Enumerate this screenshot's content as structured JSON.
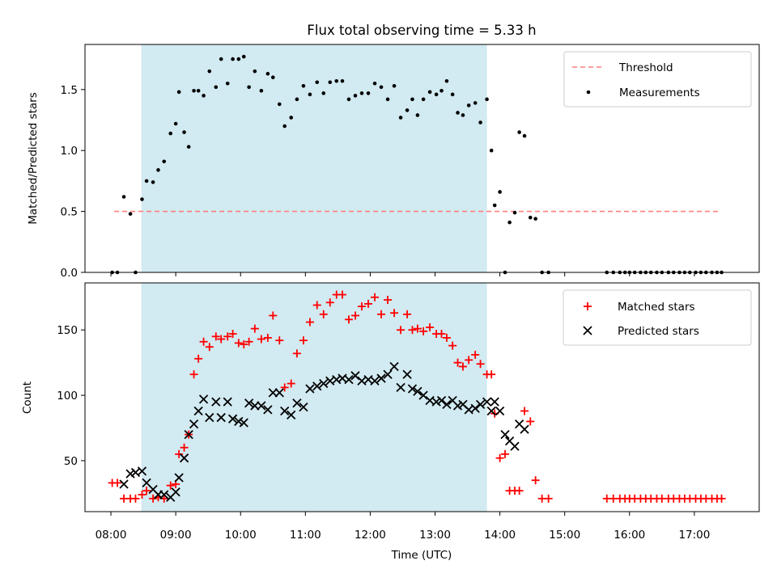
{
  "chart_data": {
    "title": "Flux total observing time = 5.33 h",
    "xlabel": "Time (UTC)",
    "x_unit": "hours UTC",
    "xlim": [
      7.6,
      18.0
    ],
    "x_ticks": [
      8,
      9,
      10,
      11,
      12,
      13,
      14,
      15,
      16,
      17
    ],
    "x_tick_labels": [
      "08:00",
      "09:00",
      "10:00",
      "11:00",
      "12:00",
      "13:00",
      "14:00",
      "15:00",
      "16:00",
      "17:00"
    ],
    "shaded_span": {
      "x0": 8.47,
      "x1": 13.8,
      "color": "#add8e6"
    },
    "panels": [
      {
        "type": "scatter",
        "ylabel": "Matched/Predicted stars",
        "ylim": [
          0,
          1.87
        ],
        "y_ticks": [
          0.0,
          0.5,
          1.0,
          1.5
        ],
        "y_tick_labels": [
          "0.0",
          "0.5",
          "1.0",
          "1.5"
        ],
        "legend_position": "upper right",
        "threshold": {
          "name": "Threshold",
          "value": 0.5,
          "x0": 8.05,
          "x1": 17.4,
          "color": "#ff7f7f"
        },
        "series": [
          {
            "name": "Measurements",
            "marker": "dot",
            "color": "#000000",
            "x": [
              8.02,
              8.1,
              8.2,
              8.3,
              8.38,
              8.48,
              8.55,
              8.65,
              8.73,
              8.82,
              8.92,
              9.0,
              9.05,
              9.13,
              9.2,
              9.28,
              9.35,
              9.43,
              9.52,
              9.62,
              9.7,
              9.8,
              9.88,
              9.97,
              10.05,
              10.13,
              10.22,
              10.32,
              10.42,
              10.5,
              10.6,
              10.68,
              10.78,
              10.87,
              10.97,
              11.07,
              11.18,
              11.28,
              11.38,
              11.48,
              11.57,
              11.67,
              11.77,
              11.87,
              11.97,
              12.07,
              12.17,
              12.27,
              12.37,
              12.47,
              12.57,
              12.65,
              12.73,
              12.82,
              12.92,
              13.02,
              13.1,
              13.18,
              13.27,
              13.35,
              13.43,
              13.52,
              13.62,
              13.7,
              13.8,
              13.87,
              13.92,
              14.0,
              14.08,
              14.15,
              14.23,
              14.3,
              14.38,
              14.47,
              14.55,
              14.65,
              14.75,
              15.65,
              15.75,
              15.85,
              15.93,
              16.0,
              16.08,
              16.17,
              16.25,
              16.33,
              16.42,
              16.5,
              16.6,
              16.68,
              16.77,
              16.85,
              16.93,
              17.02,
              17.1,
              17.18,
              17.27,
              17.35,
              17.42
            ],
            "y": [
              0.0,
              0.0,
              0.62,
              0.48,
              0.0,
              0.6,
              0.75,
              0.74,
              0.84,
              0.91,
              1.14,
              1.22,
              1.48,
              1.15,
              1.03,
              1.49,
              1.49,
              1.45,
              1.65,
              1.52,
              1.75,
              1.55,
              1.75,
              1.75,
              1.77,
              1.52,
              1.65,
              1.49,
              1.63,
              1.6,
              1.38,
              1.2,
              1.27,
              1.42,
              1.53,
              1.46,
              1.56,
              1.47,
              1.56,
              1.57,
              1.57,
              1.42,
              1.45,
              1.47,
              1.47,
              1.55,
              1.52,
              1.42,
              1.53,
              1.27,
              1.33,
              1.42,
              1.29,
              1.42,
              1.48,
              1.46,
              1.49,
              1.57,
              1.46,
              1.31,
              1.29,
              1.37,
              1.39,
              1.23,
              1.42,
              1.0,
              0.55,
              0.66,
              0.0,
              0.41,
              0.49,
              1.15,
              1.12,
              0.45,
              0.44,
              0.0,
              0.0,
              0.0,
              0.0,
              0.0,
              0.0,
              0.0,
              0.0,
              0.0,
              0.0,
              0.0,
              0.0,
              0.0,
              0.0,
              0.0,
              0.0,
              0.0,
              0.0,
              0.0,
              0.0,
              0.0,
              0.0,
              0.0,
              0.0
            ]
          }
        ]
      },
      {
        "type": "scatter",
        "ylabel": "Count",
        "ylim": [
          11,
          186
        ],
        "y_ticks": [
          50,
          100,
          150
        ],
        "y_tick_labels": [
          "50",
          "100",
          "150"
        ],
        "legend_position": "upper right",
        "series": [
          {
            "name": "Matched stars",
            "marker": "plus",
            "color": "#ff0000",
            "x": [
              8.02,
              8.1,
              8.2,
              8.3,
              8.38,
              8.48,
              8.55,
              8.65,
              8.73,
              8.82,
              8.92,
              9.0,
              9.05,
              9.13,
              9.2,
              9.28,
              9.35,
              9.43,
              9.52,
              9.62,
              9.7,
              9.8,
              9.88,
              9.97,
              10.05,
              10.13,
              10.22,
              10.32,
              10.42,
              10.5,
              10.6,
              10.68,
              10.78,
              10.87,
              10.97,
              11.07,
              11.18,
              11.28,
              11.38,
              11.48,
              11.57,
              11.67,
              11.77,
              11.87,
              11.97,
              12.07,
              12.17,
              12.27,
              12.37,
              12.47,
              12.57,
              12.65,
              12.73,
              12.82,
              12.92,
              13.02,
              13.1,
              13.18,
              13.27,
              13.35,
              13.43,
              13.52,
              13.62,
              13.7,
              13.8,
              13.87,
              13.92,
              14.0,
              14.08,
              14.15,
              14.23,
              14.3,
              14.38,
              14.47,
              14.55,
              14.65,
              14.75,
              15.65,
              15.75,
              15.85,
              15.93,
              16.0,
              16.08,
              16.17,
              16.25,
              16.33,
              16.42,
              16.5,
              16.6,
              16.68,
              16.77,
              16.85,
              16.93,
              17.02,
              17.1,
              17.18,
              17.27,
              17.35,
              17.42
            ],
            "y": [
              33,
              33,
              21,
              21,
              21,
              24,
              27,
              21,
              22,
              21,
              31,
              32,
              55,
              60,
              70,
              116,
              128,
              141,
              137,
              145,
              143,
              145,
              147,
              140,
              139,
              141,
              151,
              143,
              144,
              161,
              142,
              106,
              109,
              132,
              142,
              156,
              169,
              162,
              171,
              177,
              177,
              158,
              161,
              168,
              170,
              175,
              162,
              173,
              163,
              150,
              162,
              150,
              151,
              149,
              152,
              147,
              147,
              144,
              138,
              125,
              122,
              127,
              131,
              124,
              116,
              116,
              86,
              52,
              55,
              27,
              27,
              27,
              88,
              80,
              35,
              21,
              21,
              21,
              21,
              21,
              21,
              21,
              21,
              21,
              21,
              21,
              21,
              21,
              21,
              21,
              21,
              21,
              21,
              21,
              21,
              21,
              21,
              21,
              21
            ]
          },
          {
            "name": "Predicted stars",
            "marker": "x",
            "color": "#000000",
            "x": [
              8.2,
              8.3,
              8.38,
              8.48,
              8.55,
              8.65,
              8.73,
              8.82,
              8.92,
              9.0,
              9.05,
              9.13,
              9.2,
              9.28,
              9.35,
              9.43,
              9.52,
              9.62,
              9.7,
              9.8,
              9.88,
              9.97,
              10.05,
              10.13,
              10.22,
              10.32,
              10.42,
              10.5,
              10.6,
              10.68,
              10.78,
              10.87,
              10.97,
              11.07,
              11.18,
              11.28,
              11.38,
              11.48,
              11.57,
              11.67,
              11.77,
              11.87,
              11.97,
              12.07,
              12.17,
              12.27,
              12.37,
              12.47,
              12.57,
              12.65,
              12.73,
              12.82,
              12.92,
              13.02,
              13.1,
              13.18,
              13.27,
              13.35,
              13.43,
              13.52,
              13.62,
              13.7,
              13.8,
              13.87,
              13.92,
              14.0,
              14.08,
              14.15,
              14.23,
              14.3,
              14.38
            ],
            "y": [
              32,
              40,
              41,
              42,
              33,
              28,
              24,
              24,
              22,
              26,
              37,
              52,
              70,
              78,
              88,
              97,
              83,
              95,
              83,
              95,
              82,
              80,
              79,
              94,
              92,
              92,
              89,
              102,
              102,
              88,
              85,
              94,
              91,
              105,
              107,
              109,
              111,
              112,
              113,
              112,
              115,
              111,
              112,
              111,
              113,
              116,
              122,
              106,
              116,
              105,
              103,
              100,
              96,
              95,
              96,
              93,
              96,
              92,
              93,
              89,
              90,
              93,
              95,
              88,
              95,
              88,
              70,
              65,
              61,
              78,
              74
            ]
          }
        ]
      }
    ]
  }
}
